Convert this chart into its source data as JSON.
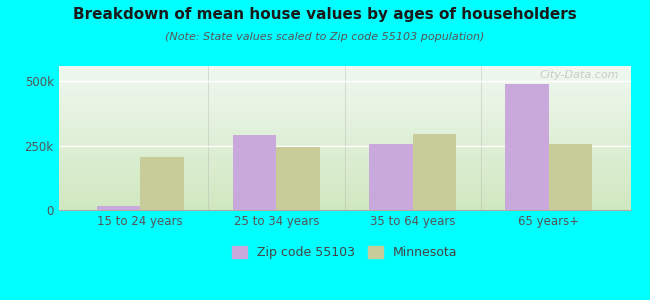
{
  "title": "Breakdown of mean house values by ages of householders",
  "subtitle": "(Note: State values scaled to Zip code 55103 population)",
  "categories": [
    "15 to 24 years",
    "25 to 34 years",
    "35 to 64 years",
    "65 years+"
  ],
  "zip_values": [
    15000,
    290000,
    255000,
    490000
  ],
  "mn_values": [
    205000,
    245000,
    295000,
    255000
  ],
  "zip_color": "#c9a8dc",
  "mn_color": "#c8cc99",
  "background_color": "#00ffff",
  "plot_bg_top": "#f0f8f0",
  "plot_bg_bottom": "#d0e8c0",
  "ylabel_ticks": [
    0,
    250000,
    500000
  ],
  "ylabel_labels": [
    "0",
    "250k",
    "500k"
  ],
  "ylim": [
    0,
    560000
  ],
  "bar_width": 0.32,
  "legend_zip": "Zip code 55103",
  "legend_mn": "Minnesota",
  "watermark": "City-Data.com",
  "title_fontsize": 11,
  "subtitle_fontsize": 8,
  "tick_fontsize": 8.5,
  "grid_color": "#d0d8d0",
  "tick_color": "#555555"
}
